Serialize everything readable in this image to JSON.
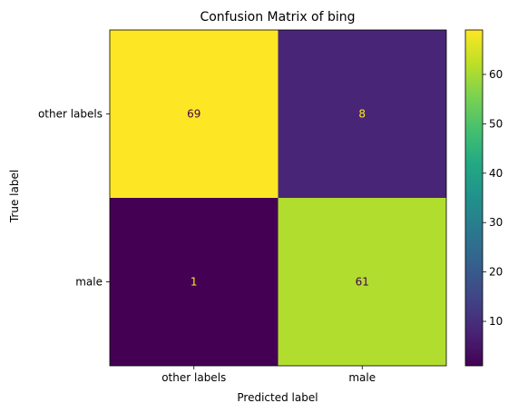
{
  "chart_data": {
    "type": "heatmap",
    "title": "Confusion Matrix of bing",
    "xlabel": "Predicted label",
    "ylabel": "True label",
    "x_categories": [
      "other labels",
      "male"
    ],
    "y_categories": [
      "other labels",
      "male"
    ],
    "values": [
      [
        69,
        8
      ],
      [
        1,
        61
      ]
    ],
    "colormap": "viridis",
    "colorbar": {
      "vmin": 1,
      "vmax": 69,
      "ticks": [
        10,
        20,
        30,
        40,
        50,
        60
      ]
    },
    "text_colors": {
      "dark": "#440154",
      "light": "#fde725"
    },
    "grid": false
  }
}
